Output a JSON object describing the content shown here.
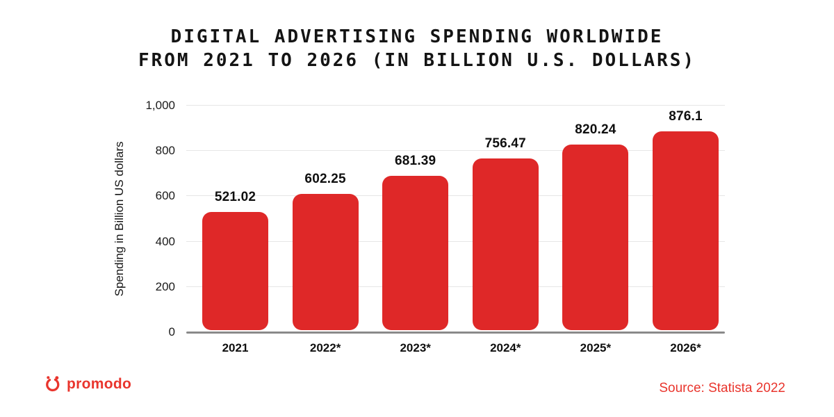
{
  "title": {
    "line1": "DIGITAL ADVERTISING SPENDING WORLDWIDE",
    "line2": "FROM 2021 TO 2026 (IN BILLION U.S. DOLLARS)"
  },
  "chart_data": {
    "type": "bar",
    "title": "Digital advertising spending worldwide from 2021 to 2026 (in billion U.S. dollars)",
    "categories": [
      "2021",
      "2022*",
      "2023*",
      "2024*",
      "2025*",
      "2026*"
    ],
    "values": [
      521.02,
      602.25,
      681.39,
      756.47,
      820.24,
      876.1
    ],
    "value_labels": [
      "521.02",
      "602.25",
      "681.39",
      "756.47",
      "820.24",
      "876.1"
    ],
    "xlabel": "",
    "ylabel": "Spending in Billion US dollars",
    "ylim": [
      0,
      1000
    ],
    "yticks": [
      {
        "value": 0,
        "label": "0"
      },
      {
        "value": 200,
        "label": "200"
      },
      {
        "value": 400,
        "label": "400"
      },
      {
        "value": 600,
        "label": "600"
      },
      {
        "value": 800,
        "label": "800"
      },
      {
        "value": 1000,
        "label": "1,000"
      }
    ],
    "grid": true,
    "legend": false,
    "bar_color": "#DF2828"
  },
  "footer": {
    "logo_text": "promodo",
    "source": "Source: Statista 2022"
  },
  "colors": {
    "bar": "#DF2828",
    "brand_red": "#E9352D",
    "grid": "#E6E6E6",
    "axis_line": "#8A8A8A",
    "text": "#131313"
  }
}
